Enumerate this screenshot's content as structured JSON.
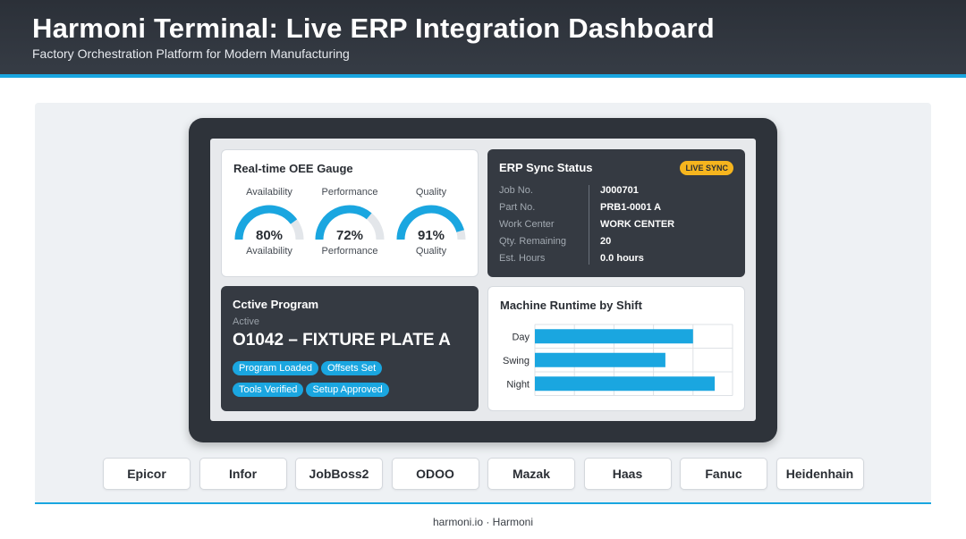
{
  "header": {
    "title": "Harmoni Terminal: Live ERP Integration Dashboard",
    "subtitle": "Factory Orchestration Platform for Modern Manufacturing"
  },
  "colors": {
    "accent": "#1aa6e0",
    "header_bg": "#2b3038",
    "badge": "#f6b51e",
    "gauge_track": "#e3e6ea"
  },
  "oee": {
    "title": "Real-time OEE Gauge",
    "gauges": [
      {
        "top_label": "Availability",
        "value": "80%",
        "fraction": 0.8,
        "bottom_label": "Availability"
      },
      {
        "top_label": "Performance",
        "value": "72%",
        "fraction": 0.72,
        "bottom_label": "Performance"
      },
      {
        "top_label": "Quality",
        "value": "91%",
        "fraction": 0.91,
        "bottom_label": "Quality"
      }
    ]
  },
  "erp": {
    "title": "ERP Sync Status",
    "badge": "LIVE SYNC",
    "labels": [
      "Job No.",
      "Part No.",
      "Work Center",
      "Qty. Remaining",
      "Est. Hours"
    ],
    "values": [
      "J000701",
      "PRB1-0001 A",
      "WORK CENTER",
      "20",
      "0.0 hours"
    ]
  },
  "program": {
    "title": "Cctive Program",
    "status": "Active",
    "name": "O1042 – FIXTURE PLATE A",
    "chips": [
      "Program Loaded",
      "Offsets Set",
      "Tools Verified",
      "Setup Approved"
    ]
  },
  "chart_data": {
    "type": "bar",
    "orientation": "horizontal",
    "title": "Machine Runtime by Shift",
    "categories": [
      "Day",
      "Swing",
      "Night"
    ],
    "values": [
      0.8,
      0.66,
      0.91
    ],
    "xlim": [
      0,
      1
    ],
    "grid": true
  },
  "integrations": [
    "Epicor",
    "Infor",
    "JobBoss2",
    "ODOO",
    "Mazak",
    "Haas",
    "Fanuc",
    "Heidenhain"
  ],
  "footer": {
    "text": "harmoni.io · Harmoni"
  }
}
